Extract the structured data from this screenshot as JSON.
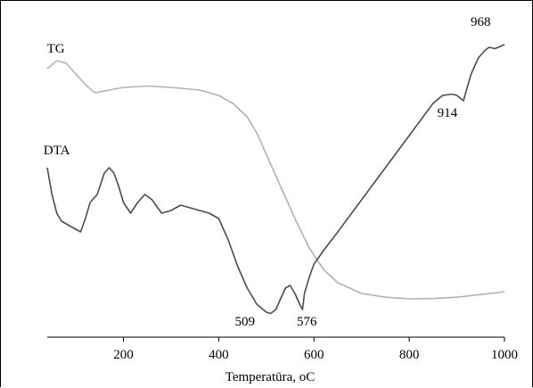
{
  "chart_data": {
    "type": "line",
    "title": "",
    "xlabel": "Temperatūra, oC",
    "ylabel": "",
    "xlim": [
      40,
      1000
    ],
    "x_ticks": [
      200,
      400,
      600,
      800,
      1000
    ],
    "grid": false,
    "legend": "none",
    "y_axis_shown": false,
    "series": [
      {
        "name": "TG",
        "color": "#b3b3b3",
        "x": [
          40,
          60,
          80,
          100,
          120,
          140,
          170,
          200,
          250,
          300,
          360,
          400,
          430,
          460,
          480,
          500,
          530,
          560,
          590,
          620,
          650,
          700,
          750,
          800,
          850,
          900,
          950,
          1000
        ],
        "y": [
          92,
          95,
          94,
          90,
          86,
          83,
          84,
          85,
          85.5,
          85,
          84,
          82,
          79,
          74,
          68,
          60,
          48,
          36,
          25,
          17,
          12,
          8,
          6.6,
          6,
          6.1,
          6.6,
          7.6,
          8.6
        ]
      },
      {
        "name": "DTA",
        "color": "#4d4d4d",
        "x": [
          40,
          50,
          60,
          70,
          80,
          90,
          100,
          110,
          120,
          130,
          145,
          160,
          170,
          180,
          190,
          200,
          215,
          230,
          245,
          260,
          280,
          300,
          320,
          340,
          360,
          380,
          400,
          420,
          440,
          460,
          480,
          500,
          509,
          520,
          530,
          540,
          550,
          560,
          570,
          576,
          580,
          590,
          600,
          620,
          650,
          700,
          750,
          800,
          850,
          870,
          890,
          900,
          914,
          920,
          930,
          945,
          960,
          968,
          980,
          1000
        ],
        "y": [
          55,
          45,
          38,
          35,
          34,
          33,
          32,
          31,
          36,
          42,
          45,
          53,
          55,
          53,
          48,
          42,
          38,
          42,
          45,
          43,
          38,
          39,
          41,
          40,
          39,
          38,
          36,
          28,
          18,
          10,
          4,
          1,
          0.5,
          2,
          6,
          10,
          11,
          8,
          4,
          2,
          8,
          14,
          19,
          24,
          31,
          43,
          55,
          67,
          79,
          82,
          82.5,
          82,
          80,
          84,
          90,
          96,
          99,
          100,
          99.5,
          101
        ]
      }
    ],
    "annotations": [
      {
        "text": "TG",
        "x": 58,
        "y": 98
      },
      {
        "text": "DTA",
        "x": 60,
        "y": 60
      },
      {
        "text": "509",
        "x": 455,
        "y": -4
      },
      {
        "text": "576",
        "x": 585,
        "y": -4
      },
      {
        "text": "914",
        "x": 880,
        "y": 74
      },
      {
        "text": "968",
        "x": 950,
        "y": 108
      }
    ]
  }
}
